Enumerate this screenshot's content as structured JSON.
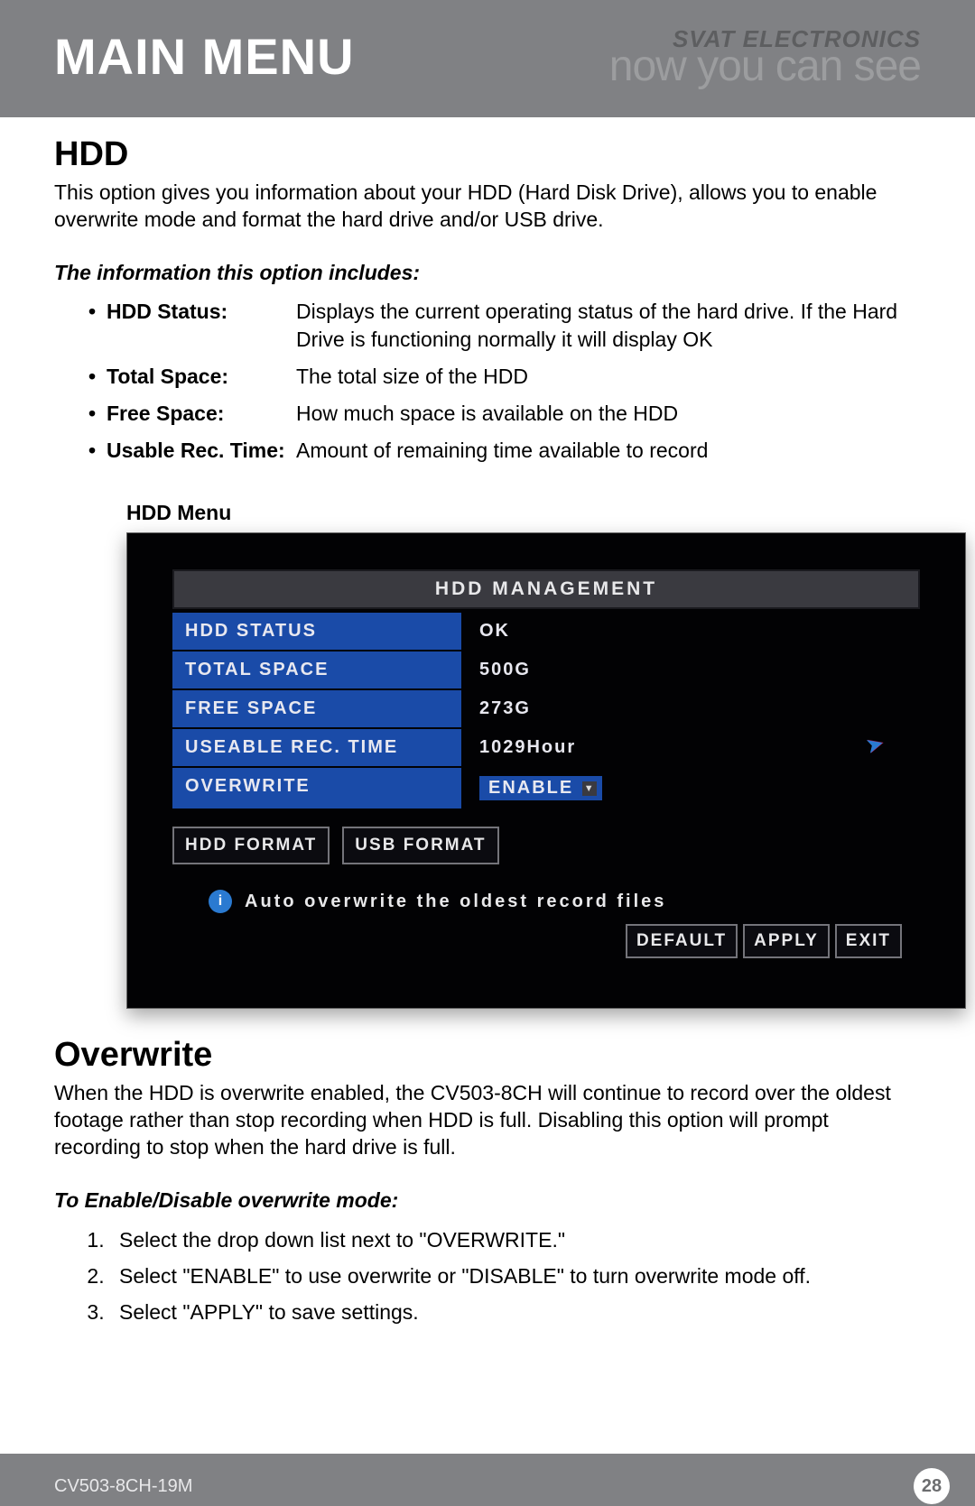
{
  "header": {
    "title": "MAIN MENU",
    "brand_top": "SVAT ELECTRONICS",
    "brand_bottom": "now you can see"
  },
  "hdd_section": {
    "heading": "HDD",
    "intro": "This option gives you information about your HDD (Hard Disk Drive), allows you to enable overwrite mode and format the hard drive and/or USB drive.",
    "includes_heading": "The information this option includes:",
    "items": [
      {
        "term": "HDD Status:",
        "desc": "Displays the current operating status of the hard drive. If the Hard Drive is functioning normally it will display OK"
      },
      {
        "term": "Total Space:",
        "desc": "The total size of the HDD"
      },
      {
        "term": "Free Space:",
        "desc": "How much space is available on the HDD"
      },
      {
        "term": "Usable Rec. Time:",
        "desc": "Amount of remaining time available to record"
      }
    ],
    "caption": "HDD Menu"
  },
  "hdd_menu": {
    "panel_title": "HDD  MANAGEMENT",
    "rows": {
      "status_label": "HDD  STATUS",
      "status_value": "OK",
      "total_label": "TOTAL  SPACE",
      "total_value": "500G",
      "free_label": "FREE  SPACE",
      "free_value": "273G",
      "useable_label": "USEABLE  REC. TIME",
      "useable_value": "1029Hour",
      "overwrite_label": "OVERWRITE",
      "overwrite_value": "ENABLE"
    },
    "hdd_format": "HDD  FORMAT",
    "usb_format": "USB  FORMAT",
    "hint": "Auto  overwrite  the  oldest  record  files",
    "default_btn": "DEFAULT",
    "apply_btn": "APPLY",
    "exit_btn": "EXIT",
    "colors": {
      "bg": "#020204",
      "row_label_bg": "#1a4ba8",
      "title_bg": "#3a3a40",
      "text": "#e8e8ea",
      "border": "#74747a"
    }
  },
  "overwrite_section": {
    "heading": "Overwrite",
    "para": "When the HDD is overwrite enabled, the CV503-8CH will continue to record over the oldest footage rather than stop recording when HDD is full.  Disabling this option will prompt recording to stop when the hard drive is full.",
    "steps_heading": "To Enable/Disable overwrite mode:",
    "steps": [
      "Select the drop down list next to \"OVERWRITE.\"",
      "Select \"ENABLE\" to use overwrite or \"DISABLE\" to turn overwrite mode off.",
      "Select \"APPLY\" to save settings."
    ]
  },
  "footer": {
    "model": "CV503-8CH-19M",
    "page": "28"
  }
}
